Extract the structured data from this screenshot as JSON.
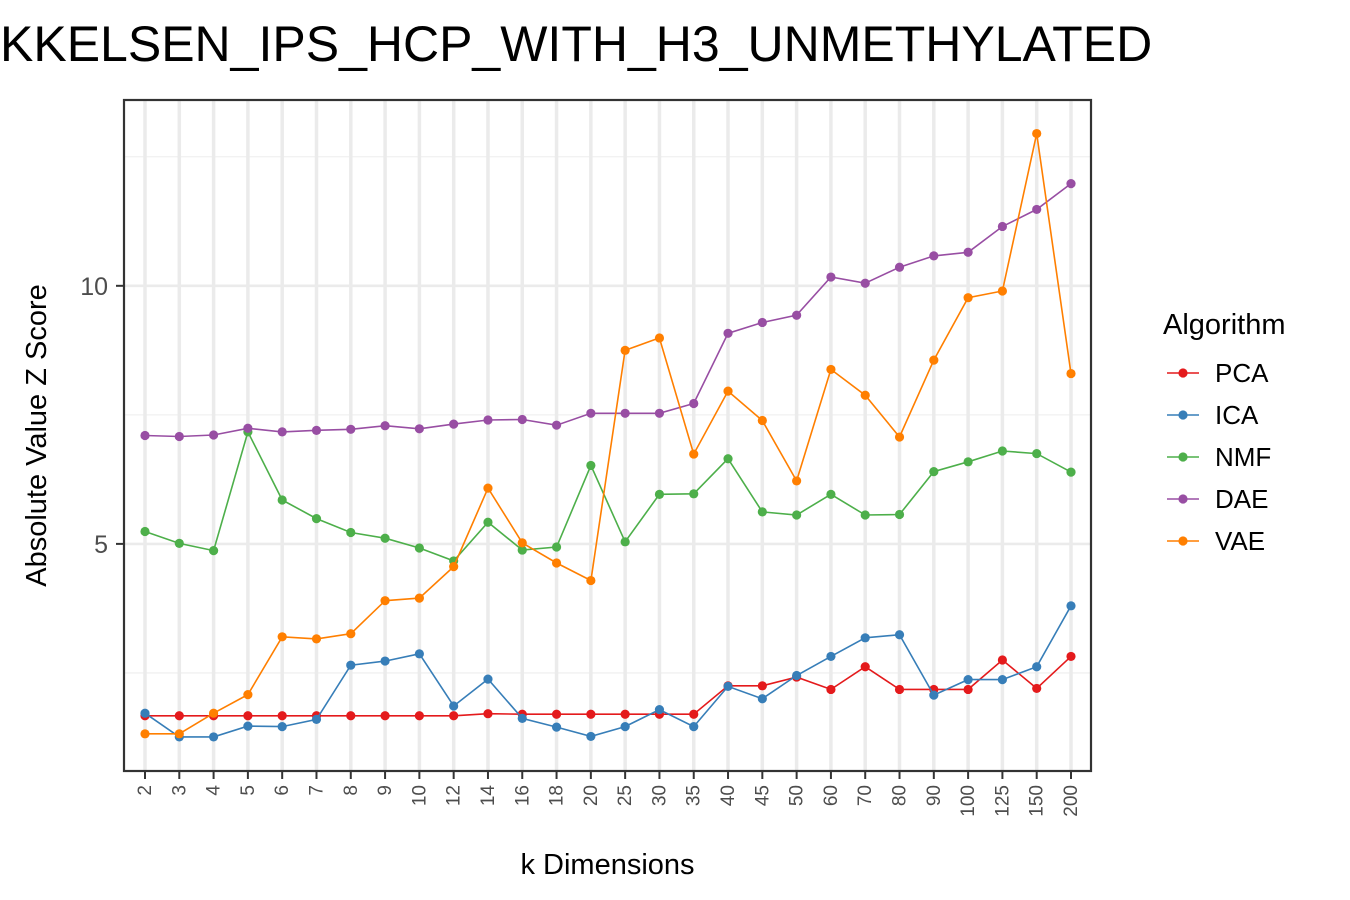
{
  "chart_data": {
    "type": "line",
    "title": "KKELSEN_IPS_HCP_WITH_H3_UNMETHYLATED",
    "xlabel": "k Dimensions",
    "ylabel": "Absolute Value Z Score",
    "categories": [
      "2",
      "3",
      "4",
      "5",
      "6",
      "7",
      "8",
      "9",
      "10",
      "12",
      "14",
      "16",
      "18",
      "20",
      "25",
      "30",
      "35",
      "40",
      "45",
      "50",
      "60",
      "70",
      "80",
      "90",
      "100",
      "125",
      "150",
      "200"
    ],
    "y_ticks": [
      5,
      10
    ],
    "ylim": [
      0.6,
      13.6
    ],
    "grid": true,
    "legend": {
      "title": "Algorithm",
      "position": "right"
    },
    "series": [
      {
        "name": "PCA",
        "color": "#E41A1C",
        "values": [
          1.67,
          1.67,
          1.67,
          1.67,
          1.67,
          1.67,
          1.67,
          1.67,
          1.67,
          1.67,
          1.71,
          1.7,
          1.7,
          1.7,
          1.7,
          1.7,
          1.7,
          2.25,
          2.25,
          2.42,
          2.18,
          2.62,
          2.18,
          2.18,
          2.18,
          2.75,
          2.2,
          2.82
        ]
      },
      {
        "name": "ICA",
        "color": "#377EB8",
        "values": [
          1.72,
          1.26,
          1.26,
          1.47,
          1.46,
          1.6,
          2.65,
          2.73,
          2.87,
          1.86,
          2.38,
          1.62,
          1.45,
          1.27,
          1.46,
          1.79,
          1.46,
          2.24,
          2.0,
          2.45,
          2.82,
          3.18,
          3.24,
          2.07,
          2.37,
          2.37,
          2.62,
          3.8
        ]
      },
      {
        "name": "NMF",
        "color": "#4DAF4A",
        "values": [
          5.24,
          5.01,
          4.87,
          7.17,
          5.85,
          5.49,
          5.22,
          5.11,
          4.92,
          4.67,
          5.42,
          4.88,
          4.94,
          6.52,
          5.04,
          5.96,
          5.97,
          6.65,
          5.62,
          5.56,
          5.96,
          5.56,
          5.57,
          6.4,
          6.59,
          6.8,
          6.75,
          6.39
        ]
      },
      {
        "name": "DAE",
        "color": "#984EA3",
        "values": [
          7.1,
          7.08,
          7.11,
          7.24,
          7.17,
          7.2,
          7.22,
          7.29,
          7.23,
          7.32,
          7.4,
          7.41,
          7.3,
          7.53,
          7.53,
          7.53,
          7.72,
          9.08,
          9.29,
          9.43,
          10.17,
          10.05,
          10.36,
          10.58,
          10.65,
          11.15,
          11.48,
          11.98
        ]
      },
      {
        "name": "VAE",
        "color": "#FF7F00",
        "values": [
          1.32,
          1.32,
          1.72,
          2.08,
          3.2,
          3.16,
          3.26,
          3.9,
          3.95,
          4.56,
          6.08,
          5.02,
          4.63,
          4.29,
          8.75,
          8.99,
          6.74,
          7.96,
          7.39,
          6.22,
          8.38,
          7.88,
          7.07,
          8.56,
          9.77,
          9.9,
          12.95,
          8.3
        ]
      }
    ]
  }
}
